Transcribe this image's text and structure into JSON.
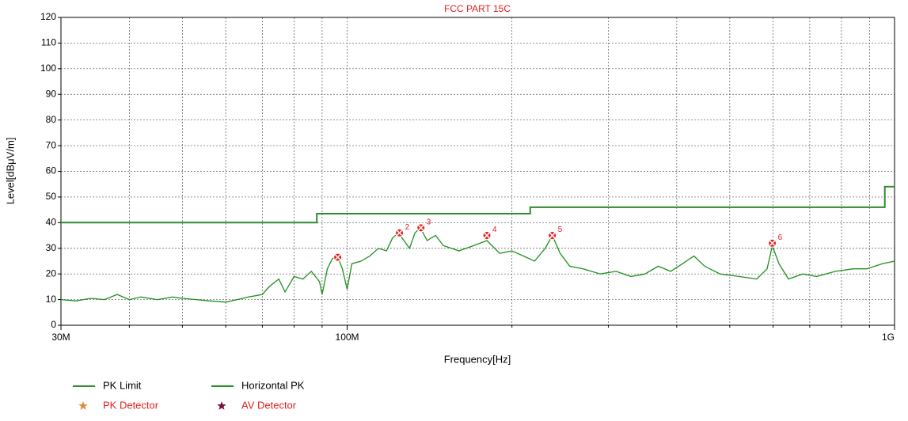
{
  "chart_data": {
    "type": "line",
    "title": "FCC PART 15C",
    "xlabel": "Frequency[Hz]",
    "ylabel": "Level[dBμV/m]",
    "xscale": "log",
    "xlim": [
      30000000,
      1000000000
    ],
    "xticks": [
      {
        "value": 30000000,
        "label": "30M"
      },
      {
        "value": 100000000,
        "label": "100M"
      },
      {
        "value": 1000000000,
        "label": "1G"
      }
    ],
    "xgrid": [
      40000000,
      50000000,
      60000000,
      70000000,
      80000000,
      90000000,
      100000000,
      200000000,
      300000000,
      400000000,
      500000000,
      600000000,
      700000000,
      800000000,
      900000000
    ],
    "ylim": [
      0,
      120
    ],
    "yticks": [
      0,
      10,
      20,
      30,
      40,
      50,
      60,
      70,
      80,
      90,
      100,
      110,
      120
    ],
    "grid": true,
    "series": [
      {
        "name": "PK Limit",
        "color": "#2e8b2e",
        "x": [
          30000000.0,
          88000000.0,
          88000000.0,
          216000000.0,
          216000000.0,
          960000000.0,
          960000000.0,
          1000000000.0
        ],
        "values": [
          40,
          40,
          43.5,
          43.5,
          46,
          46,
          54,
          54
        ]
      },
      {
        "name": "Horizontal PK",
        "color": "#1f8f1f",
        "x": [
          30000000.0,
          32000000.0,
          34000000.0,
          36000000.0,
          38000000.0,
          40000000.0,
          42000000.0,
          45000000.0,
          48000000.0,
          50000000.0,
          53000000.0,
          56000000.0,
          60000000.0,
          63000000.0,
          66000000.0,
          70000000.0,
          72000000.0,
          75000000.0,
          77000000.0,
          80000000.0,
          83000000.0,
          86000000.0,
          89000000.0,
          90000000.0,
          92000000.0,
          94000000.0,
          96000000.0,
          98000000.0,
          100000000.0,
          102000000.0,
          106000000.0,
          110000000.0,
          114000000.0,
          118000000.0,
          121000000.0,
          124000000.0,
          127000000.0,
          130000000.0,
          133000000.0,
          136000000.0,
          140000000.0,
          145000000.0,
          150000000.0,
          155000000.0,
          160000000.0,
          170000000.0,
          180000000.0,
          190000000.0,
          200000000.0,
          210000000.0,
          220000000.0,
          230000000.0,
          237000000.0,
          245000000.0,
          255000000.0,
          270000000.0,
          290000000.0,
          310000000.0,
          330000000.0,
          350000000.0,
          370000000.0,
          390000000.0,
          410000000.0,
          430000000.0,
          450000000.0,
          480000000.0,
          520000000.0,
          560000000.0,
          585000000.0,
          598000000.0,
          615000000.0,
          640000000.0,
          680000000.0,
          720000000.0,
          780000000.0,
          840000000.0,
          890000000.0,
          950000000.0,
          1000000000.0
        ],
        "values": [
          10,
          9.5,
          10.5,
          10,
          12,
          10,
          11,
          10,
          11,
          10.5,
          10,
          9.5,
          9,
          10,
          11,
          12,
          15,
          18,
          13,
          19,
          18,
          21,
          17,
          12,
          22,
          26,
          27,
          22,
          14,
          24,
          25,
          27,
          30,
          29,
          34,
          36,
          33,
          30,
          36,
          38,
          33,
          35,
          31,
          30,
          29,
          31,
          33,
          28,
          29,
          27,
          25,
          30,
          35,
          28,
          23,
          22,
          20,
          21,
          19,
          20,
          23,
          21,
          24,
          27,
          23,
          20,
          19,
          18,
          22,
          31,
          24,
          18,
          20,
          19,
          21,
          22,
          22,
          24,
          25
        ]
      }
    ],
    "markers": [
      {
        "name": "PK Detector",
        "color": "#e08a3c",
        "x": [
          96100000.0,
          124600000.0,
          136400000.0,
          180000000.0,
          237000000.0,
          598000000.0
        ],
        "values": [
          26.5,
          36,
          38,
          35,
          35,
          32
        ],
        "labels": [
          null,
          "2",
          "3",
          "4",
          "5",
          "6"
        ]
      },
      {
        "name": "AV Detector",
        "color": "#7a1040"
      }
    ]
  }
}
